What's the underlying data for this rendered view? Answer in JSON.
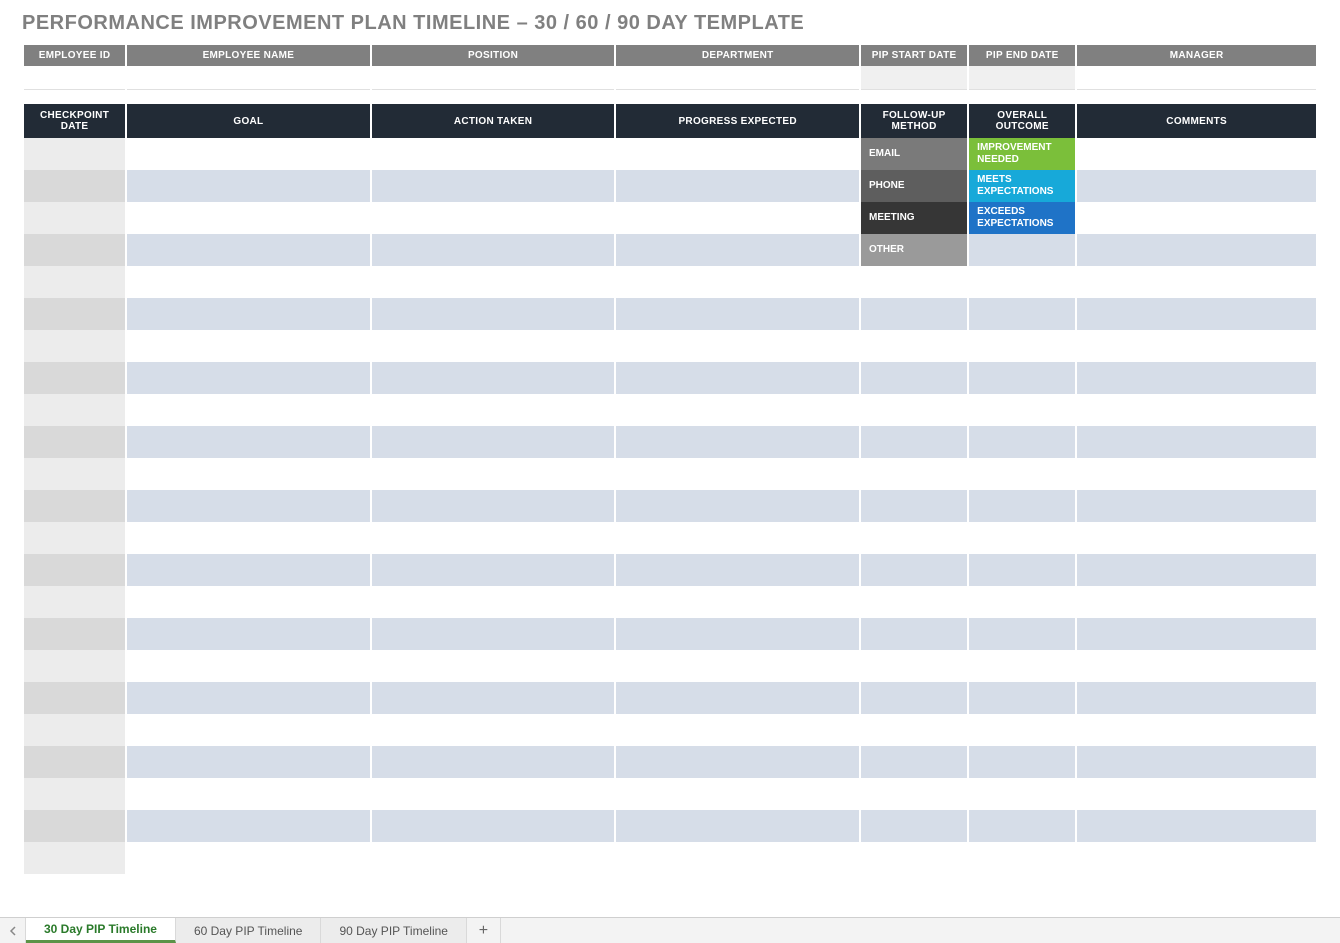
{
  "page_title": "PERFORMANCE IMPROVEMENT PLAN TIMELINE  –  30 / 60 / 90 DAY TEMPLATE",
  "info_headers": [
    "EMPLOYEE ID",
    "EMPLOYEE NAME",
    "POSITION",
    "DEPARTMENT",
    "PIP START DATE",
    "PIP END DATE",
    "MANAGER"
  ],
  "info_shaded_cols": [
    4,
    5
  ],
  "main_headers": [
    "CHECKPOINT DATE",
    "GOAL",
    "ACTION TAKEN",
    "PROGRESS EXPECTED",
    "FOLLOW-UP METHOD",
    "OVERALL OUTCOME",
    "COMMENTS"
  ],
  "followup_methods": [
    "EMAIL",
    "PHONE",
    "MEETING",
    "OTHER"
  ],
  "followup_colors": [
    "#7a7a7a",
    "#5e5e5e",
    "#363636",
    "#9a9a9a"
  ],
  "outcomes": [
    "IMPROVEMENT NEEDED",
    "MEETS EXPECTATIONS",
    "EXCEEDS EXPECTATIONS"
  ],
  "outcome_colors": [
    "#7bbf3a",
    "#17a9d9",
    "#1f73c7"
  ],
  "row_count": 23,
  "sheet_tabs": [
    "30 Day PIP Timeline",
    "60 Day PIP Timeline",
    "90 Day PIP Timeline"
  ],
  "active_tab_index": 0,
  "colors": {
    "title": "#808080",
    "info_header_bg": "#808080",
    "main_header_bg": "#222b36",
    "odd_row_first": "#ececec",
    "odd_row_rest": "#ffffff",
    "even_row_first": "#d9d9d9",
    "even_row_rest": "#d6dde8",
    "tabbar_bg": "#f3f3f3",
    "active_tab_underline": "#5b9347"
  }
}
